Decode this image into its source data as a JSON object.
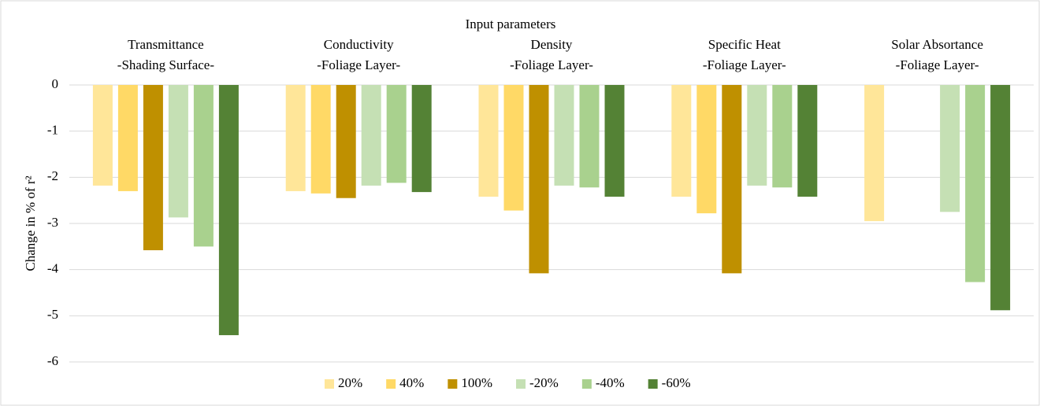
{
  "chart_data": {
    "type": "bar",
    "title": "Input parameters",
    "y_label": "Change in % of r²",
    "categories": [
      [
        "Transmittance",
        "-Shading Surface-"
      ],
      [
        "Conductivity",
        "-Foliage Layer-"
      ],
      [
        "Density",
        "-Foliage Layer-"
      ],
      [
        "Specific Heat",
        "-Foliage Layer-"
      ],
      [
        "Solar Absortance",
        "-Foliage Layer-"
      ]
    ],
    "series": [
      {
        "name": "20%",
        "color": "#ffe699",
        "values": [
          -2.18,
          -2.3,
          -2.42,
          -2.42,
          -2.95
        ]
      },
      {
        "name": "40%",
        "color": "#ffd966",
        "values": [
          -2.3,
          -2.35,
          -2.72,
          -2.78,
          null
        ]
      },
      {
        "name": "100%",
        "color": "#bf9000",
        "values": [
          -3.58,
          -2.45,
          -4.08,
          -4.08,
          null
        ]
      },
      {
        "name": "-20%",
        "color": "#c5e0b4",
        "values": [
          -2.87,
          -2.18,
          -2.18,
          -2.18,
          -2.75
        ]
      },
      {
        "name": "-40%",
        "color": "#a9d18e",
        "values": [
          -3.5,
          -2.12,
          -2.22,
          -2.22,
          -4.27
        ]
      },
      {
        "name": "-60%",
        "color": "#548235",
        "values": [
          -5.42,
          -2.32,
          -2.42,
          -2.42,
          -4.88
        ]
      }
    ],
    "ylim": [
      -6,
      0
    ],
    "yticks": [
      0,
      -1,
      -2,
      -3,
      -4,
      -5,
      -6
    ],
    "grid": true,
    "legend": "bottom"
  }
}
